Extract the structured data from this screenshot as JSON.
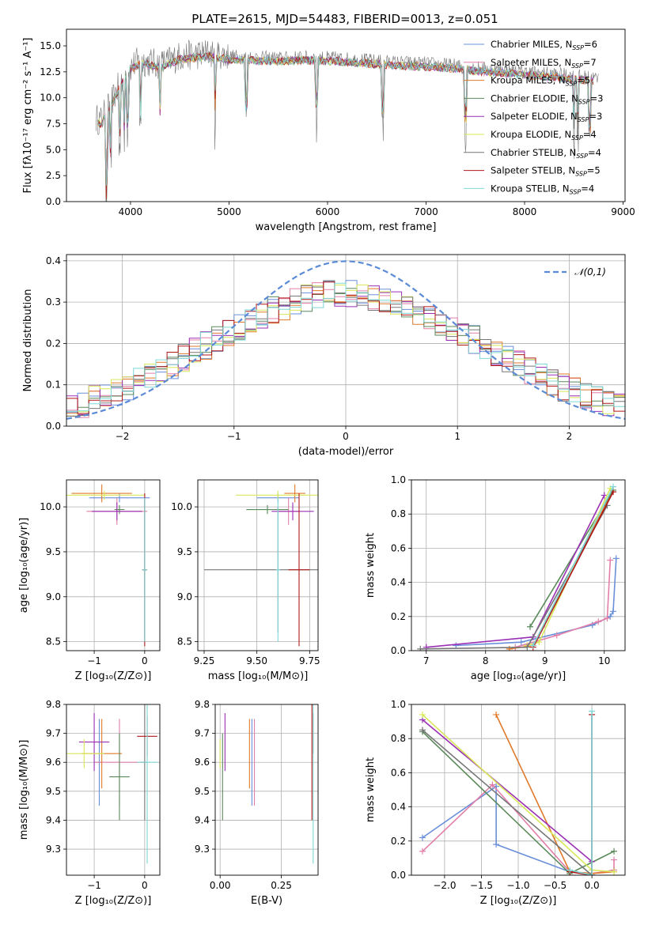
{
  "figure_title": "PLATE=2615, MJD=54483, FIBERID=0013, z=0.051",
  "colors": {
    "Chabrier MILES": "#6a8fd9",
    "Salpeter MILES": "#e27fa9",
    "Kroupa MILES": "#e07a2a",
    "Chabrier ELODIE": "#5a8a5a",
    "Salpeter ELODIE": "#9b30b5",
    "Kroupa ELODIE": "#d9e85a",
    "Chabrier STELIB": "#777777",
    "Salpeter STELIB": "#b01818",
    "Kroupa STELIB": "#7fd7d7",
    "normal_curve": "#5b8bd6"
  },
  "chart_data": [
    {
      "type": "line",
      "title": "PLATE=2615, MJD=54483, FIBERID=0013, z=0.051",
      "xlabel": "wavelength [Angstrom, rest frame]",
      "ylabel": "Flux [fλ10⁻¹⁷ erg cm⁻² s⁻¹ A⁻¹]",
      "xlim": [
        3350,
        9020
      ],
      "ylim": [
        0,
        16.6
      ],
      "xticks": [
        4000,
        5000,
        6000,
        7000,
        8000,
        9000
      ],
      "yticks": [
        0.0,
        2.5,
        5.0,
        7.5,
        10.0,
        12.5,
        15.0
      ],
      "legend_position": "top-right",
      "legend": [
        {
          "name": "Chabrier MILES",
          "nssp": "6"
        },
        {
          "name": "Salpeter MILES",
          "nssp": "7"
        },
        {
          "name": "Kroupa MILES",
          "nssp": "5"
        },
        {
          "name": "Chabrier ELODIE",
          "nssp": "3"
        },
        {
          "name": "Salpeter ELODIE",
          "nssp": "3"
        },
        {
          "name": "Kroupa ELODIE",
          "nssp": "4"
        },
        {
          "name": "Chabrier STELIB",
          "nssp": "4"
        },
        {
          "name": "Salpeter STELIB",
          "nssp": "5"
        },
        {
          "name": "Kroupa STELIB",
          "nssp": "4"
        }
      ],
      "spectrum_envelope": {
        "x": [
          3650,
          3700,
          3800,
          3900,
          4000,
          4100,
          4300,
          4500,
          4800,
          5000,
          5200,
          5500,
          5800,
          6100,
          6400,
          6700,
          7000,
          7300,
          7600,
          8000,
          8400,
          8800
        ],
        "y": [
          8.0,
          7.8,
          9.5,
          11.5,
          13.0,
          13.6,
          13.2,
          14.0,
          14.3,
          14.0,
          13.9,
          13.8,
          13.9,
          13.8,
          13.6,
          13.4,
          13.3,
          13.1,
          12.8,
          12.5,
          12.2,
          11.8
        ]
      },
      "absorption_lines": [
        3750,
        3760,
        3800,
        3890,
        3935,
        3970,
        4100,
        4300,
        4860,
        5175,
        5890,
        6563,
        7400,
        8500,
        8540,
        8660
      ],
      "data_gap": [
        6790,
        6800
      ]
    },
    {
      "type": "histogram",
      "xlabel": "(data-model)/error",
      "ylabel": "Normed distribution",
      "xlim": [
        -2.5,
        2.5
      ],
      "ylim": [
        0,
        0.415
      ],
      "xticks": [
        -2,
        -1,
        0,
        1,
        2
      ],
      "yticks": [
        0.0,
        0.1,
        0.2,
        0.3,
        0.4
      ],
      "bin_width": 0.1,
      "reference_curve": {
        "label": "𝒩(0,1)",
        "mean": 0,
        "sigma": 1
      },
      "legend_position": "top-right"
    },
    {
      "type": "scatter",
      "xlabel": "Z [log₁₀(Z/Z⊙)]",
      "ylabel": "age  [log₁₀(age/yr)]",
      "xlim": [
        -1.55,
        0.3
      ],
      "ylim": [
        8.4,
        10.3
      ],
      "xticks": [
        -1,
        0
      ],
      "yticks": [
        8.5,
        9.0,
        9.5,
        10.0
      ],
      "points": [
        {
          "model": "Chabrier MILES",
          "x": -0.5,
          "y": 10.1,
          "xerr": 0.6,
          "yerr": 0.05
        },
        {
          "model": "Salpeter MILES",
          "x": -0.55,
          "y": 9.95,
          "xerr": 0.6,
          "yerr": 0.15
        },
        {
          "model": "Kroupa MILES",
          "x": -0.85,
          "y": 10.15,
          "xerr": 0.6,
          "yerr": 0.1
        },
        {
          "model": "Chabrier ELODIE",
          "x": -0.5,
          "y": 9.97,
          "xerr": 0.1,
          "yerr": 0.05
        },
        {
          "model": "Salpeter ELODIE",
          "x": -0.55,
          "y": 9.95,
          "xerr": 0.5,
          "yerr": 0.1
        },
        {
          "model": "Kroupa ELODIE",
          "x": -0.8,
          "y": 10.13,
          "xerr": 0.8,
          "yerr": 0.05
        },
        {
          "model": "Chabrier STELIB",
          "x": 0.0,
          "y": 9.3,
          "xerr": 0.05,
          "yerr": 0.8
        },
        {
          "model": "Salpeter STELIB",
          "x": 0.0,
          "y": 9.3,
          "xerr": 0.05,
          "yerr": 0.85
        },
        {
          "model": "Kroupa STELIB",
          "x": 0.0,
          "y": 9.3,
          "xerr": 0.05,
          "yerr": 0.8
        }
      ]
    },
    {
      "type": "scatter",
      "xlabel": "mass [log₁₀(M/M⊙)]",
      "ylabel": "",
      "xlim": [
        9.22,
        9.79
      ],
      "ylim": [
        8.4,
        10.3
      ],
      "xticks": [
        9.25,
        9.5,
        9.75
      ],
      "yticks": [
        8.5,
        9.0,
        9.5,
        10.0
      ],
      "points": [
        {
          "model": "Chabrier MILES",
          "x": 9.6,
          "y": 10.1,
          "xerr": 0.1,
          "yerr": 0.05
        },
        {
          "model": "Salpeter MILES",
          "x": 9.65,
          "y": 9.95,
          "xerr": 0.05,
          "yerr": 0.15
        },
        {
          "model": "Kroupa MILES",
          "x": 9.68,
          "y": 10.15,
          "xerr": 0.05,
          "yerr": 0.1
        },
        {
          "model": "Chabrier ELODIE",
          "x": 9.55,
          "y": 9.97,
          "xerr": 0.1,
          "yerr": 0.05
        },
        {
          "model": "Salpeter ELODIE",
          "x": 9.67,
          "y": 9.95,
          "xerr": 0.1,
          "yerr": 0.1
        },
        {
          "model": "Kroupa ELODIE",
          "x": 9.6,
          "y": 10.13,
          "xerr": 0.2,
          "yerr": 0.05
        },
        {
          "model": "Chabrier STELIB",
          "x": 9.6,
          "y": 9.3,
          "xerr": 0.35,
          "yerr": 0.7
        },
        {
          "model": "Salpeter STELIB",
          "x": 9.7,
          "y": 9.3,
          "xerr": 0.05,
          "yerr": 0.85
        },
        {
          "model": "Kroupa STELIB",
          "x": 9.6,
          "y": 9.3,
          "xerr": 0.01,
          "yerr": 0.8
        }
      ]
    },
    {
      "type": "line",
      "xlabel": "age  [log₁₀(age/yr)]",
      "ylabel": "mass weight",
      "xlim": [
        6.75,
        10.35
      ],
      "ylim": [
        0,
        1.0
      ],
      "xticks": [
        7,
        8,
        9,
        10
      ],
      "yticks": [
        0.0,
        0.2,
        0.4,
        0.6,
        0.8,
        1.0
      ],
      "series": [
        {
          "name": "Chabrier MILES",
          "x": [
            7.5,
            8.6,
            9.8,
            10.1,
            10.15,
            10.2
          ],
          "y": [
            0.03,
            0.05,
            0.15,
            0.2,
            0.23,
            0.54
          ]
        },
        {
          "name": "Salpeter MILES",
          "x": [
            8.5,
            9.2,
            9.9,
            10.05,
            10.1
          ],
          "y": [
            0.02,
            0.09,
            0.17,
            0.19,
            0.53
          ]
        },
        {
          "name": "Kroupa MILES",
          "x": [
            8.4,
            8.8,
            10.15
          ],
          "y": [
            0.01,
            0.03,
            0.94
          ]
        },
        {
          "name": "Chabrier ELODIE",
          "x": [
            8.75,
            10.15
          ],
          "y": [
            0.14,
            0.94
          ]
        },
        {
          "name": "Salpeter ELODIE",
          "x": [
            7.0,
            8.8,
            10.0
          ],
          "y": [
            0.02,
            0.08,
            0.91
          ]
        },
        {
          "name": "Kroupa ELODIE",
          "x": [
            8.7,
            8.9,
            10.1
          ],
          "y": [
            0.03,
            0.05,
            0.95
          ]
        },
        {
          "name": "Chabrier STELIB",
          "x": [
            6.9,
            8.7,
            10.05
          ],
          "y": [
            0.01,
            0.02,
            0.85
          ]
        },
        {
          "name": "Salpeter STELIB",
          "x": [
            8.8,
            10.15
          ],
          "y": [
            0.02,
            0.93
          ]
        },
        {
          "name": "Kroupa STELIB",
          "x": [
            8.8,
            10.15
          ],
          "y": [
            0.03,
            0.96
          ]
        }
      ]
    },
    {
      "type": "scatter",
      "xlabel": "Z [log₁₀(Z/Z⊙)]",
      "ylabel": "mass [log₁₀(M/M⊙)]",
      "xlim": [
        -1.55,
        0.3
      ],
      "ylim": [
        9.21,
        9.8
      ],
      "xticks": [
        -1,
        0
      ],
      "yticks": [
        9.3,
        9.4,
        9.5,
        9.6,
        9.7,
        9.8
      ],
      "points": [
        {
          "model": "Chabrier MILES",
          "x": -0.9,
          "y": 9.6,
          "xerr": 0.05,
          "yerr": 0.15
        },
        {
          "model": "Salpeter MILES",
          "x": -0.5,
          "y": 9.6,
          "xerr": 0.5,
          "yerr": 0.15
        },
        {
          "model": "Kroupa MILES",
          "x": -0.85,
          "y": 9.63,
          "xerr": 0.4,
          "yerr": 0.12
        },
        {
          "model": "Chabrier ELODIE",
          "x": -0.5,
          "y": 9.55,
          "xerr": 0.2,
          "yerr": 0.15
        },
        {
          "model": "Salpeter ELODIE",
          "x": -1.0,
          "y": 9.67,
          "xerr": 0.3,
          "yerr": 0.1
        },
        {
          "model": "Kroupa ELODIE",
          "x": -1.2,
          "y": 9.63,
          "xerr": 0.4,
          "yerr": 0.05
        },
        {
          "model": "Chabrier STELIB",
          "x": 0.0,
          "y": 9.6,
          "xerr": 0.05,
          "yerr": 0.2
        },
        {
          "model": "Salpeter STELIB",
          "x": 0.05,
          "y": 9.69,
          "xerr": 0.2,
          "yerr": 0.07
        },
        {
          "model": "Kroupa STELIB",
          "x": 0.05,
          "y": 9.6,
          "xerr": 0.2,
          "yerr": 0.35
        }
      ]
    },
    {
      "type": "scatter",
      "xlabel": "E(B-V)",
      "ylabel": "",
      "xlim": [
        -0.02,
        0.4
      ],
      "ylim": [
        9.21,
        9.8
      ],
      "xticks": [
        0.0,
        0.25
      ],
      "yticks": [
        9.3,
        9.4,
        9.5,
        9.6,
        9.7,
        9.8
      ],
      "points": [
        {
          "model": "Chabrier MILES",
          "x": 0.13,
          "y": 9.6,
          "xerr": 0,
          "yerr": 0.15
        },
        {
          "model": "Salpeter MILES",
          "x": 0.14,
          "y": 9.6,
          "xerr": 0,
          "yerr": 0.15
        },
        {
          "model": "Kroupa MILES",
          "x": 0.12,
          "y": 9.63,
          "xerr": 0,
          "yerr": 0.12
        },
        {
          "model": "Chabrier ELODIE",
          "x": 0.01,
          "y": 9.55,
          "xerr": 0,
          "yerr": 0.15
        },
        {
          "model": "Salpeter ELODIE",
          "x": 0.02,
          "y": 9.67,
          "xerr": 0,
          "yerr": 0.1
        },
        {
          "model": "Kroupa ELODIE",
          "x": 0.0,
          "y": 9.63,
          "xerr": 0,
          "yerr": 0.05
        },
        {
          "model": "Chabrier STELIB",
          "x": 0.38,
          "y": 9.7,
          "xerr": 0,
          "yerr": 0.07
        },
        {
          "model": "Salpeter STELIB",
          "x": 0.375,
          "y": 9.6,
          "xerr": 0,
          "yerr": 0.2
        },
        {
          "model": "Kroupa STELIB",
          "x": 0.38,
          "y": 9.6,
          "xerr": 0,
          "yerr": 0.35
        }
      ]
    },
    {
      "type": "line",
      "xlabel": "Z [log₁₀(Z/Z⊙)]",
      "ylabel": "mass weight",
      "xlim": [
        -2.45,
        0.45
      ],
      "ylim": [
        0,
        1.0
      ],
      "xticks": [
        -2.0,
        -1.5,
        -1.0,
        -0.5,
        0.0
      ],
      "yticks": [
        0.0,
        0.2,
        0.4,
        0.6,
        0.8,
        1.0
      ],
      "series": [
        {
          "name": "Chabrier MILES",
          "x": [
            -2.3,
            -1.3,
            -1.3,
            -0.3,
            0.0,
            0.0
          ],
          "y": [
            0.22,
            0.52,
            0.18,
            0.02,
            0.01,
            0.94
          ]
        },
        {
          "name": "Salpeter MILES",
          "x": [
            -2.3,
            -1.35,
            -0.3,
            0.0,
            0.3,
            0.3
          ],
          "y": [
            0.14,
            0.53,
            0.02,
            0.01,
            0.03,
            0.09
          ]
        },
        {
          "name": "Kroupa MILES",
          "x": [
            -1.3,
            -0.3,
            0.0,
            0.3
          ],
          "y": [
            0.94,
            0.02,
            0.01,
            0.02
          ]
        },
        {
          "name": "Chabrier ELODIE",
          "x": [
            -2.3,
            -0.3,
            0.3
          ],
          "y": [
            0.84,
            0.01,
            0.14
          ]
        },
        {
          "name": "Salpeter ELODIE",
          "x": [
            -2.3,
            0.0,
            0.0
          ],
          "y": [
            0.91,
            0.08,
            0.0
          ]
        },
        {
          "name": "Kroupa ELODIE",
          "x": [
            -2.3,
            0.0,
            0.3
          ],
          "y": [
            0.94,
            0.03,
            0.02
          ]
        },
        {
          "name": "Chabrier STELIB",
          "x": [
            -2.3,
            0.0
          ],
          "y": [
            0.85,
            0.0
          ]
        },
        {
          "name": "Salpeter STELIB",
          "x": [
            -0.3,
            0.0,
            0.0
          ],
          "y": [
            0.02,
            0.0,
            0.94
          ]
        },
        {
          "name": "Kroupa STELIB",
          "x": [
            -0.3,
            0.0,
            0.0
          ],
          "y": [
            0.03,
            0.0,
            0.96
          ]
        }
      ]
    }
  ]
}
